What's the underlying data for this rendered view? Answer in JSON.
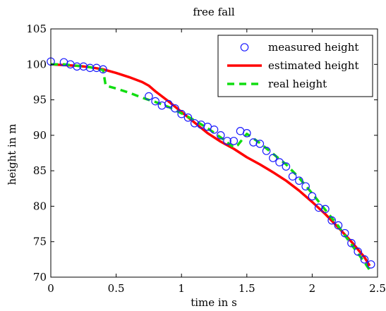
{
  "chart_data": {
    "type": "line",
    "title": "free fall",
    "xlabel": "time in s",
    "ylabel": "height in m",
    "xlim": [
      0,
      2.5
    ],
    "ylim": [
      70,
      105
    ],
    "xticks": [
      0,
      0.5,
      1,
      1.5,
      2,
      2.5
    ],
    "xtick_labels": [
      "0",
      "0.5",
      "1",
      "1.5",
      "2",
      "2.5"
    ],
    "yticks": [
      70,
      75,
      80,
      85,
      90,
      95,
      100,
      105
    ],
    "ytick_labels": [
      "70",
      "75",
      "80",
      "85",
      "90",
      "95",
      "100",
      "105"
    ],
    "grid": false,
    "legend_position": "top-right",
    "series": [
      {
        "name": "measured height",
        "style": "markers",
        "color": "#1a1aff",
        "x": [
          0.0,
          0.1,
          0.15,
          0.2,
          0.25,
          0.3,
          0.35,
          0.4,
          0.75,
          0.8,
          0.85,
          0.9,
          0.95,
          1.0,
          1.05,
          1.1,
          1.15,
          1.2,
          1.25,
          1.3,
          1.35,
          1.4,
          1.45,
          1.5,
          1.55,
          1.6,
          1.65,
          1.7,
          1.75,
          1.8,
          1.85,
          1.9,
          1.95,
          2.0,
          2.05,
          2.1,
          2.15,
          2.2,
          2.25,
          2.3,
          2.35,
          2.4,
          2.45
        ],
        "y": [
          100.4,
          100.3,
          100.0,
          99.7,
          99.7,
          99.5,
          99.5,
          99.3,
          95.5,
          94.8,
          94.2,
          94.4,
          93.8,
          93.0,
          92.5,
          91.7,
          91.5,
          91.2,
          90.8,
          90.0,
          89.2,
          89.2,
          90.6,
          90.3,
          89.0,
          88.8,
          87.8,
          86.8,
          86.2,
          85.6,
          84.2,
          83.6,
          82.8,
          81.4,
          79.8,
          79.6,
          78.0,
          77.3,
          76.2,
          74.8,
          73.6,
          72.5,
          71.8
        ]
      },
      {
        "name": "estimated height",
        "style": "solid",
        "color": "#ff0000",
        "x": [
          0.0,
          0.1,
          0.2,
          0.3,
          0.4,
          0.5,
          0.6,
          0.7,
          0.75,
          0.8,
          0.9,
          1.0,
          1.1,
          1.2,
          1.3,
          1.4,
          1.5,
          1.6,
          1.7,
          1.8,
          1.9,
          2.0,
          2.1,
          2.2,
          2.3,
          2.4,
          2.44
        ],
        "y": [
          100.0,
          99.9,
          99.8,
          99.6,
          99.3,
          98.8,
          98.2,
          97.5,
          97.0,
          96.2,
          94.8,
          93.3,
          91.8,
          90.3,
          89.1,
          88.1,
          86.9,
          85.9,
          84.8,
          83.6,
          82.2,
          80.6,
          78.9,
          77.0,
          75.0,
          72.8,
          71.6
        ]
      },
      {
        "name": "real height",
        "style": "dashed",
        "color": "#11dd11",
        "x": [
          0.0,
          0.1,
          0.2,
          0.3,
          0.4,
          0.42,
          0.5,
          0.6,
          0.7,
          0.8,
          0.9,
          1.0,
          1.1,
          1.2,
          1.3,
          1.4,
          1.43,
          1.5,
          1.6,
          1.7,
          1.8,
          1.9,
          2.0,
          2.1,
          2.2,
          2.3,
          2.4,
          2.44
        ],
        "y": [
          100.0,
          100.0,
          99.8,
          99.6,
          99.2,
          97.0,
          96.6,
          96.0,
          95.3,
          94.7,
          94.0,
          93.1,
          92.1,
          91.0,
          89.7,
          88.3,
          88.6,
          90.2,
          88.9,
          87.4,
          85.9,
          84.0,
          81.8,
          79.5,
          77.2,
          74.6,
          72.1,
          71.0
        ]
      }
    ]
  }
}
